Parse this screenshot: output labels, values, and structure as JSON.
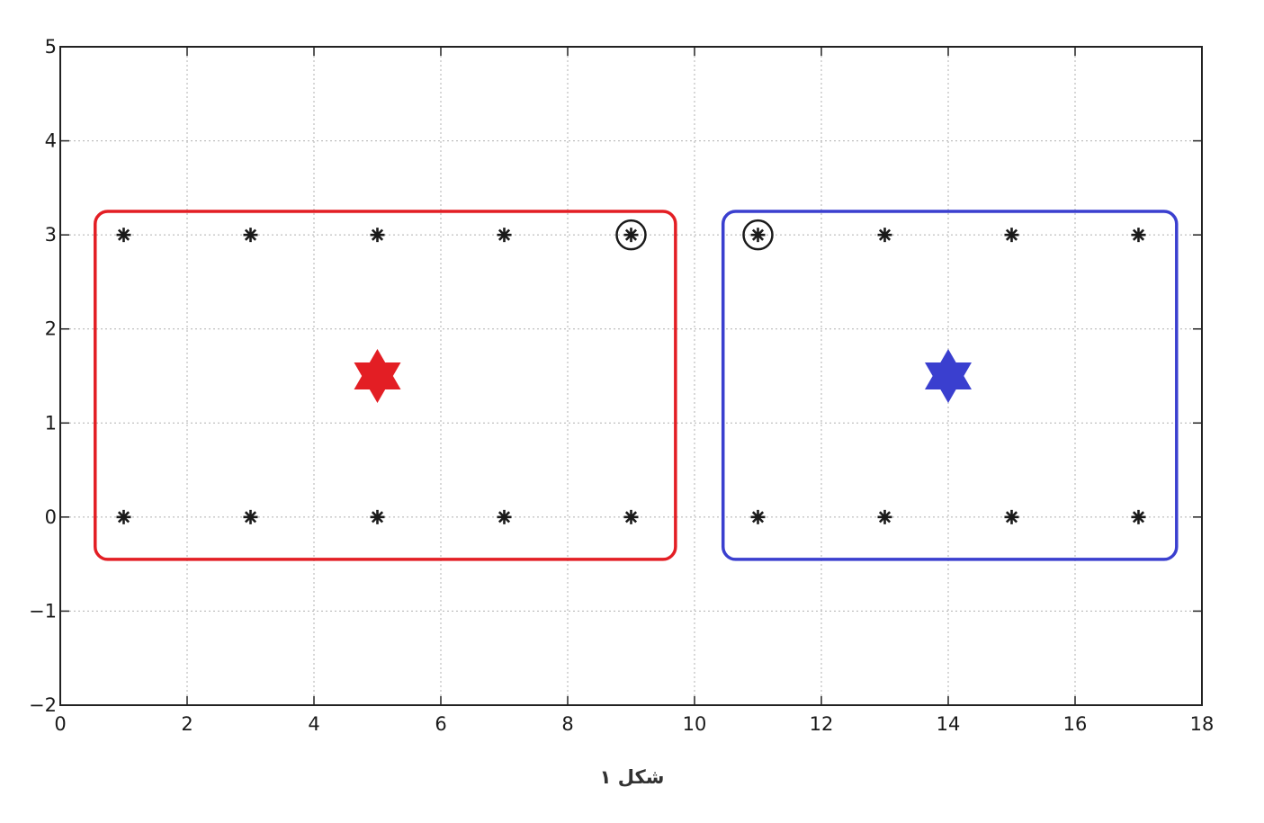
{
  "chart_data": {
    "type": "scatter",
    "xlim": [
      0,
      18
    ],
    "ylim": [
      -2,
      5
    ],
    "xticks": [
      0,
      2,
      4,
      6,
      8,
      10,
      12,
      14,
      16,
      18
    ],
    "yticks": [
      -2,
      -1,
      0,
      1,
      2,
      3,
      4,
      5
    ],
    "xtick_labels": [
      "0",
      "2",
      "4",
      "6",
      "8",
      "10",
      "12",
      "14",
      "16",
      "18"
    ],
    "ytick_labels": [
      "−2",
      "−1",
      "0",
      "1",
      "2",
      "3",
      "4",
      "5"
    ],
    "grid": true,
    "points": [
      {
        "x": 1,
        "y": 3
      },
      {
        "x": 3,
        "y": 3
      },
      {
        "x": 5,
        "y": 3
      },
      {
        "x": 7,
        "y": 3
      },
      {
        "x": 9,
        "y": 3
      },
      {
        "x": 11,
        "y": 3
      },
      {
        "x": 13,
        "y": 3
      },
      {
        "x": 15,
        "y": 3
      },
      {
        "x": 17,
        "y": 3
      },
      {
        "x": 1,
        "y": 0
      },
      {
        "x": 3,
        "y": 0
      },
      {
        "x": 5,
        "y": 0
      },
      {
        "x": 7,
        "y": 0
      },
      {
        "x": 9,
        "y": 0
      },
      {
        "x": 11,
        "y": 0
      },
      {
        "x": 13,
        "y": 0
      },
      {
        "x": 15,
        "y": 0
      },
      {
        "x": 17,
        "y": 0
      }
    ],
    "circled_points": [
      {
        "x": 9,
        "y": 3
      },
      {
        "x": 11,
        "y": 3
      }
    ],
    "clusters": [
      {
        "color": "#e31e24",
        "x_range": [
          0.55,
          9.7
        ],
        "y_range": [
          -0.45,
          3.25
        ],
        "centroid": {
          "x": 5,
          "y": 1.5
        }
      },
      {
        "color": "#3a3fcf",
        "x_range": [
          10.45,
          17.6
        ],
        "y_range": [
          -0.45,
          3.25
        ],
        "centroid": {
          "x": 14,
          "y": 1.5
        }
      }
    ],
    "point_color": "#1a1a1a"
  },
  "caption": "شکل ۱"
}
